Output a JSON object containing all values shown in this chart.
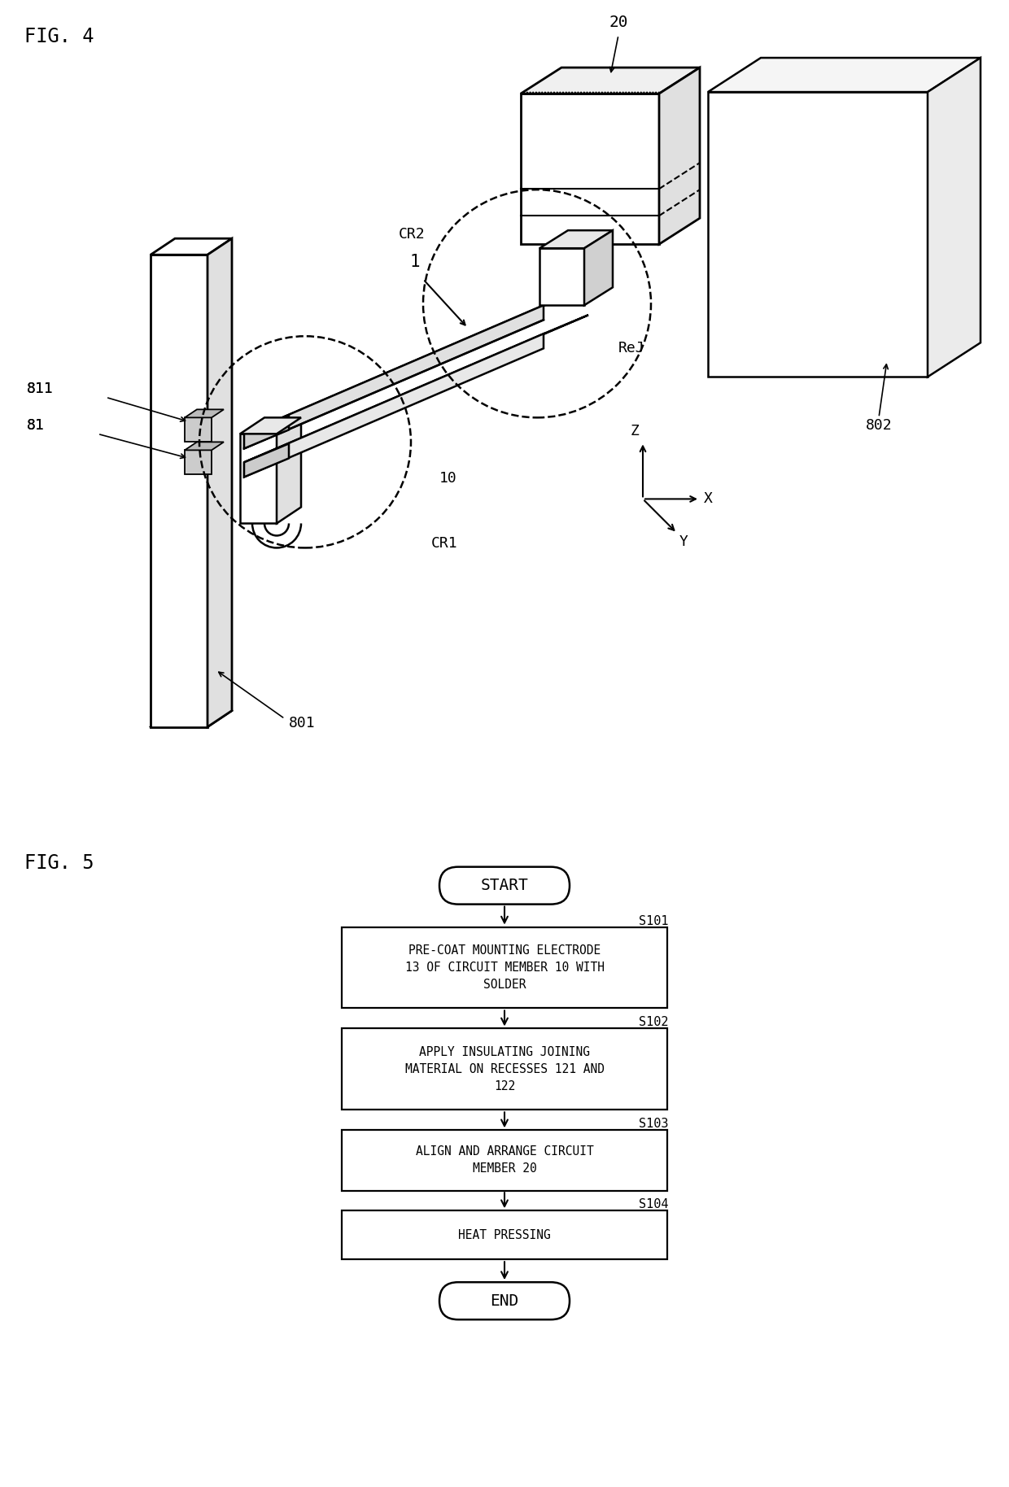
{
  "bg_color": "#ffffff",
  "line_color": "#000000",
  "fig4_title": "FIG. 4",
  "fig5_title": "FIG. 5",
  "labels": {
    "l1": "1",
    "l10": "10",
    "l20": "20",
    "l81": "81",
    "l811": "811",
    "l801": "801",
    "l802": "802",
    "lCR1": "CR1",
    "lCR2": "CR2",
    "lReJ": "ReJ"
  },
  "flowchart": {
    "steps": [
      {
        "id": "S101",
        "text": "PRE-COAT MOUNTING ELECTRODE\n13 OF CIRCUIT MEMBER 10 WITH\nSOLDER"
      },
      {
        "id": "S102",
        "text": "APPLY INSULATING JOINING\nMATERIAL ON RECESSES 121 AND\n122"
      },
      {
        "id": "S103",
        "text": "ALIGN AND ARRANGE CIRCUIT\nMEMBER 20"
      },
      {
        "id": "S104",
        "text": "HEAT PRESSING"
      }
    ]
  }
}
